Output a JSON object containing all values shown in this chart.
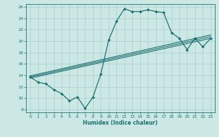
{
  "xlabel": "Humidex (Indice chaleur)",
  "xlim": [
    -0.5,
    23.5
  ],
  "ylim": [
    7.5,
    26.5
  ],
  "yticks": [
    8,
    10,
    12,
    14,
    16,
    18,
    20,
    22,
    24,
    26
  ],
  "xticks": [
    0,
    1,
    2,
    3,
    4,
    5,
    6,
    7,
    8,
    9,
    10,
    11,
    12,
    13,
    14,
    15,
    16,
    17,
    18,
    19,
    20,
    21,
    22,
    23
  ],
  "bg_color": "#cce8e4",
  "grid_color": "#aacccc",
  "line_color": "#1a7070",
  "main_line": {
    "x": [
      0,
      1,
      2,
      3,
      4,
      5,
      6,
      7,
      8,
      9,
      10,
      11,
      12,
      13,
      14,
      15,
      16,
      17,
      18,
      19,
      20,
      21,
      22,
      23
    ],
    "y": [
      13.7,
      12.8,
      12.5,
      11.5,
      10.8,
      9.5,
      10.2,
      8.2,
      10.2,
      14.2,
      20.2,
      23.5,
      25.7,
      25.2,
      25.2,
      25.5,
      25.2,
      25.0,
      21.5,
      20.5,
      18.5,
      20.5,
      19.0,
      20.5
    ]
  },
  "ref_lines": [
    {
      "x0": 0,
      "y0": 13.5,
      "x1": 23,
      "y1": 20.5
    },
    {
      "x0": 0,
      "y0": 13.7,
      "x1": 23,
      "y1": 20.8
    },
    {
      "x0": 0,
      "y0": 13.9,
      "x1": 23,
      "y1": 21.1
    }
  ]
}
